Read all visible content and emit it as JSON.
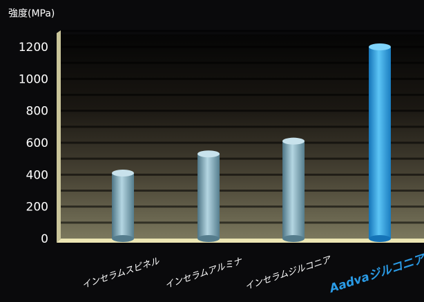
{
  "chart_data": {
    "type": "bar",
    "ylabel": "強度(MPa)",
    "ylim": [
      0,
      1200
    ],
    "yticks": [
      0,
      200,
      400,
      600,
      800,
      1000,
      1200
    ],
    "categories": [
      "インセラムスピネル",
      "インセラムアルミナ",
      "インセラムジルコニア",
      "Aadvaジルコニア"
    ],
    "values": [
      410,
      530,
      610,
      1200
    ],
    "highlight_index": 3,
    "colors": {
      "bar": "#8fb8c8",
      "highlight_bar": "#2a9be6",
      "highlight_label": "#2a9be6",
      "text": "#ffffff",
      "axis": "#ece6b4"
    }
  }
}
